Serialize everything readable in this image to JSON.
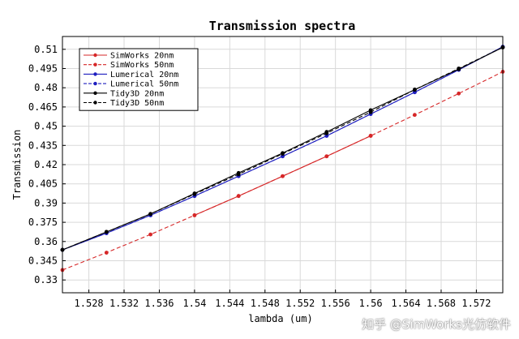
{
  "chart_data": {
    "type": "line",
    "title": "Transmission spectra",
    "xlabel": "lambda (um)",
    "ylabel": "Transmission",
    "xlim": [
      1.525,
      1.575
    ],
    "ylim": [
      0.32,
      0.52
    ],
    "xticks": [
      1.528,
      1.532,
      1.536,
      1.54,
      1.544,
      1.548,
      1.552,
      1.556,
      1.56,
      1.564,
      1.568,
      1.572
    ],
    "xtick_labels": [
      "1.528",
      "1.532",
      "1.536",
      "1.54",
      "1.544",
      "1.548",
      "1.552",
      "1.556",
      "1.56",
      "1.564",
      "1.568",
      "1.572"
    ],
    "yticks": [
      0.33,
      0.345,
      0.36,
      0.375,
      0.39,
      0.405,
      0.42,
      0.435,
      0.45,
      0.465,
      0.48,
      0.495,
      0.51
    ],
    "ytick_labels": [
      "0.33",
      "0.345",
      "0.36",
      "0.375",
      "0.39",
      "0.405",
      "0.42",
      "0.435",
      "0.45",
      "0.465",
      "0.48",
      "0.495",
      "0.51"
    ],
    "grid": true,
    "legend_position": "top-left",
    "series": [
      {
        "name": "SimWorks 20nm",
        "color": "#d62728",
        "dash": "solid",
        "x": [
          1.54,
          1.545,
          1.55,
          1.555,
          1.56
        ],
        "y": [
          0.3805,
          0.3955,
          0.411,
          0.4265,
          0.4425
        ]
      },
      {
        "name": "SimWorks 50nm",
        "color": "#d62728",
        "dash": "dashed",
        "x": [
          1.525,
          1.53,
          1.535,
          1.54,
          1.545,
          1.55,
          1.555,
          1.56,
          1.565,
          1.57,
          1.575
        ],
        "y": [
          0.3378,
          0.3513,
          0.3655,
          0.3805,
          0.3955,
          0.411,
          0.4265,
          0.4425,
          0.4588,
          0.4755,
          0.4925
        ]
      },
      {
        "name": "Lumerical 20nm",
        "color": "#1f1fbf",
        "dash": "solid",
        "x": [
          1.525,
          1.53,
          1.535,
          1.54,
          1.545,
          1.55,
          1.555,
          1.56,
          1.565,
          1.57,
          1.575
        ],
        "y": [
          0.3535,
          0.3665,
          0.3805,
          0.3955,
          0.411,
          0.4265,
          0.4425,
          0.4595,
          0.4765,
          0.494,
          0.512
        ]
      },
      {
        "name": "Lumerical 50nm",
        "color": "#1f1fbf",
        "dash": "dashed",
        "x": [
          1.525,
          1.53,
          1.535,
          1.54,
          1.545,
          1.55,
          1.555,
          1.56,
          1.565,
          1.57,
          1.575
        ],
        "y": [
          0.3535,
          0.3665,
          0.3805,
          0.3955,
          0.411,
          0.4265,
          0.4425,
          0.4595,
          0.4765,
          0.494,
          0.512
        ]
      },
      {
        "name": "Tidy3D 20nm",
        "color": "#000000",
        "dash": "solid",
        "x": [
          1.525,
          1.53,
          1.535,
          1.54,
          1.545,
          1.55,
          1.555,
          1.56,
          1.565,
          1.57,
          1.575
        ],
        "y": [
          0.3535,
          0.3675,
          0.3815,
          0.3975,
          0.4135,
          0.429,
          0.4455,
          0.4625,
          0.4785,
          0.4945,
          0.5115
        ]
      },
      {
        "name": "Tidy3D 50nm",
        "color": "#000000",
        "dash": "dashed",
        "x": [
          1.525,
          1.53,
          1.535,
          1.54,
          1.545,
          1.55,
          1.555,
          1.56,
          1.565,
          1.57,
          1.575
        ],
        "y": [
          0.3535,
          0.3675,
          0.3815,
          0.397,
          0.4125,
          0.4285,
          0.4445,
          0.461,
          0.4785,
          0.495,
          0.5115
        ]
      }
    ]
  },
  "watermark": "知乎 @SimWorks光仿软件"
}
